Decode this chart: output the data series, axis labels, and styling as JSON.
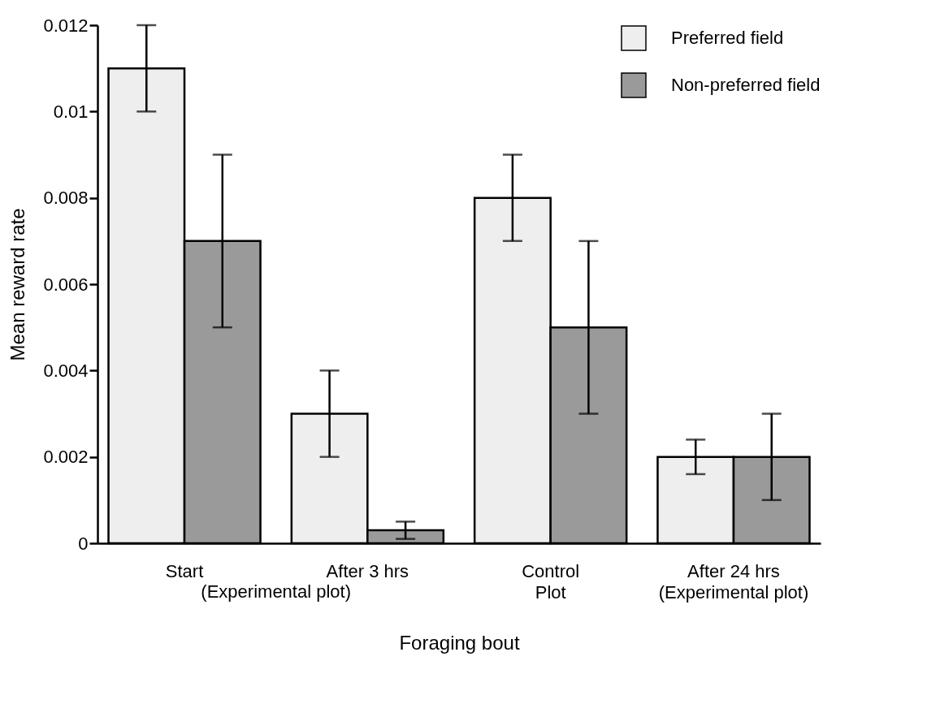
{
  "chart_data": {
    "type": "bar",
    "xlabel": "Foraging bout",
    "ylabel": "Mean reward rate",
    "categories": [
      "Start",
      "After 3 hrs",
      "Control\nPlot",
      "After 24 hrs\n(Experimental plot)"
    ],
    "series": [
      {
        "name": "Preferred field",
        "color": "#eeeeee",
        "values": [
          0.011,
          0.003,
          0.008,
          0.002
        ],
        "errors": [
          0.001,
          0.001,
          0.001,
          0.0004
        ]
      },
      {
        "name": "Non-preferred field",
        "color": "#9a9a9a",
        "values": [
          0.007,
          0.0003,
          0.005,
          0.002
        ],
        "errors": [
          0.002,
          0.0002,
          0.002,
          0.001
        ]
      }
    ],
    "ylim": [
      0,
      0.012
    ],
    "yticks": [
      0,
      0.002,
      0.004,
      0.006,
      0.008,
      0.01,
      0.012
    ],
    "annotations": [
      "(Experimental plot)"
    ],
    "grid": false,
    "legend": "top right"
  }
}
